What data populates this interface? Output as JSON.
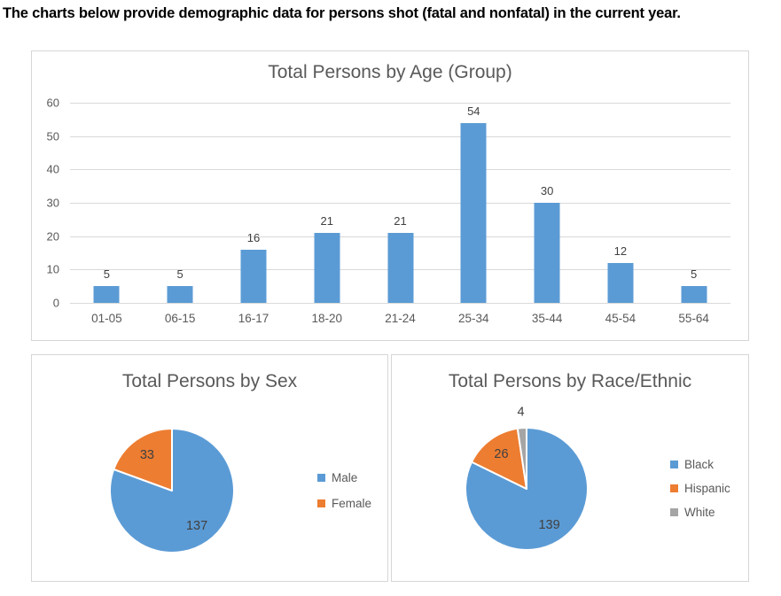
{
  "header": {
    "text": "The charts below provide demographic data for persons shot (fatal and nonfatal) in the current year."
  },
  "colors": {
    "series_blue": "#5B9BD5",
    "series_orange": "#ED7D31",
    "series_gray": "#A5A5A5",
    "title_text": "#595959",
    "axis_text": "#595959",
    "data_label_text": "#404040",
    "gridline": "#D9D9D9",
    "panel_border": "#D6D6D6"
  },
  "chart_data": [
    {
      "id": "age",
      "type": "bar",
      "title": "Total Persons by Age (Group)",
      "categories": [
        "01-05",
        "06-15",
        "16-17",
        "18-20",
        "21-24",
        "25-34",
        "35-44",
        "45-54",
        "55-64"
      ],
      "values": [
        5,
        5,
        16,
        21,
        21,
        54,
        30,
        12,
        5
      ],
      "bar_color": "#5B9BD5",
      "ylim": [
        0,
        60
      ],
      "yticks": [
        0,
        10,
        20,
        30,
        40,
        50,
        60
      ],
      "grid": true,
      "data_labels": true,
      "legend_position": "none"
    },
    {
      "id": "sex",
      "type": "pie",
      "title": "Total Persons by Sex",
      "slices": [
        {
          "label": "Male",
          "value": 137,
          "color": "#5B9BD5"
        },
        {
          "label": "Female",
          "value": 33,
          "color": "#ED7D31"
        }
      ],
      "start_angle_deg": 0,
      "direction": "clockwise",
      "legend_position": "right",
      "data_labels": true
    },
    {
      "id": "race",
      "type": "pie",
      "title": "Total Persons by Race/Ethnic",
      "slices": [
        {
          "label": "Black",
          "value": 139,
          "color": "#5B9BD5"
        },
        {
          "label": "Hispanic",
          "value": 26,
          "color": "#ED7D31"
        },
        {
          "label": "White",
          "value": 4,
          "color": "#A5A5A5"
        }
      ],
      "start_angle_deg": 0,
      "direction": "clockwise",
      "legend_position": "right",
      "data_labels": true
    }
  ]
}
